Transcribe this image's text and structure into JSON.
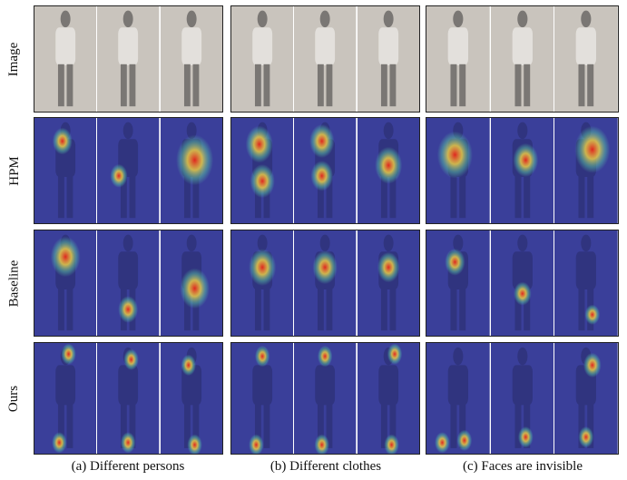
{
  "row_labels": [
    "Image",
    "HPM",
    "Baseline",
    "Ours"
  ],
  "captions": [
    "(a) Different persons",
    "(b) Different clothes",
    "(c) Faces are invisible"
  ],
  "colors": {
    "photo_bg": "#c9c4bd",
    "heat_bg": "#3a3f9a",
    "heat_hot": "#e8261a",
    "heat_warm": "#f5d442",
    "heat_mid": "#59c9a5"
  }
}
